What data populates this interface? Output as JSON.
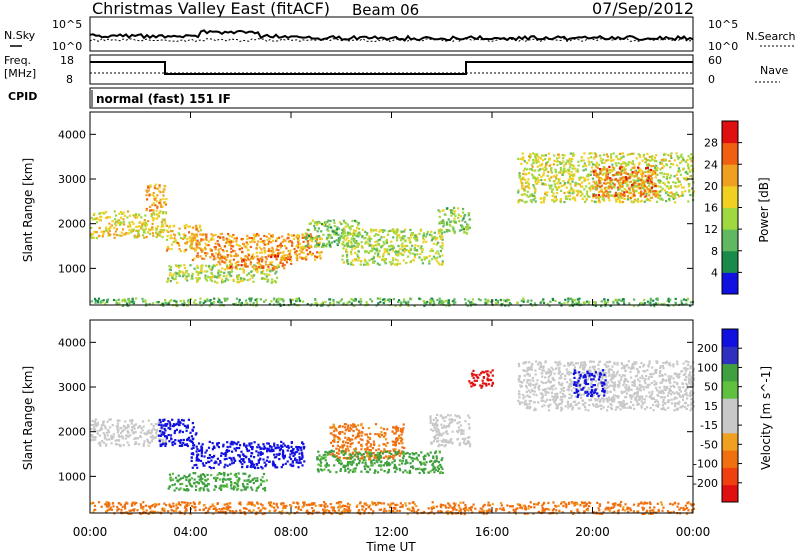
{
  "header": {
    "title": "Christmas Valley East (fitACF)",
    "beam": "Beam 06",
    "date": "07/Sep/2012"
  },
  "strip_labels": {
    "nsky": "N.Sky",
    "nsky_top": "10^5",
    "nsky_bottom": "10^0",
    "nsearch": "N.Search",
    "nsearch_top": "10^5",
    "nsearch_bottom": "10^0",
    "freq": "Freq.",
    "freq_unit": "[MHz]",
    "freq_top": "18",
    "freq_bottom": "8",
    "nave": "Nave",
    "nave_top": "60",
    "nave_bottom": "0",
    "cpid": "CPID",
    "cpid_value": "normal (fast) 151 IF"
  },
  "colors": {
    "power_scale": [
      "#1010e0",
      "#1a8a4a",
      "#60b860",
      "#a0d840",
      "#f0d020",
      "#f0a020",
      "#f06010",
      "#e01010"
    ],
    "velocity_scale": [
      "#e01010",
      "#f04010",
      "#f07010",
      "#f0a020",
      "#c8c8c8",
      "#c8c8c8",
      "#60c040",
      "#40a040",
      "#3030c0",
      "#1010e0"
    ]
  },
  "chart_data": [
    {
      "type": "heatmap",
      "name": "power",
      "ylabel": "Slant Range [km]",
      "ylim": [
        180,
        4500
      ],
      "xlim": [
        0,
        24
      ],
      "yticks": [
        "1000",
        "2000",
        "3000",
        "4000"
      ],
      "colorbar_label": "Power [dB]",
      "colorbar_ticks": [
        "4",
        "8",
        "12",
        "16",
        "20",
        "24",
        "28"
      ],
      "colorbar_range": [
        0,
        32
      ],
      "features": [
        {
          "x": [
            0,
            3.0
          ],
          "y": [
            1700,
            2300
          ],
          "value": 18
        },
        {
          "x": [
            2.2,
            3.0
          ],
          "y": [
            2300,
            2900
          ],
          "value": 22
        },
        {
          "x": [
            3.0,
            4.4
          ],
          "y": [
            1400,
            2000
          ],
          "value": 20
        },
        {
          "x": [
            4.0,
            9.2
          ],
          "y": [
            1200,
            1800
          ],
          "value": 22
        },
        {
          "x": [
            3.0,
            7.5
          ],
          "y": [
            700,
            1100
          ],
          "value": 14
        },
        {
          "x": [
            5.0,
            8.0
          ],
          "y": [
            1000,
            1300
          ],
          "value": 24
        },
        {
          "x": [
            8.5,
            10.8
          ],
          "y": [
            1500,
            2100
          ],
          "value": 12
        },
        {
          "x": [
            10.0,
            14.0
          ],
          "y": [
            1100,
            1900
          ],
          "value": 14
        },
        {
          "x": [
            13.8,
            15.1
          ],
          "y": [
            1800,
            2400
          ],
          "value": 12
        },
        {
          "x": [
            17.0,
            24.0
          ],
          "y": [
            2500,
            3600
          ],
          "value": 16
        },
        {
          "x": [
            20.0,
            22.5
          ],
          "y": [
            2600,
            3300
          ],
          "value": 24
        },
        {
          "x": [
            0,
            24
          ],
          "y": [
            180,
            350
          ],
          "value": 10
        }
      ]
    },
    {
      "type": "heatmap",
      "name": "velocity",
      "ylabel": "Slant Range [km]",
      "ylim": [
        180,
        4500
      ],
      "xlim": [
        0,
        24
      ],
      "yticks": [
        "1000",
        "2000",
        "3000",
        "4000"
      ],
      "colorbar_label": "Velocity [m s^-1]",
      "colorbar_ticks": [
        "200",
        "100",
        "50",
        "15",
        "-15",
        "-50",
        "-100",
        "-200"
      ],
      "features": [
        {
          "x": [
            0,
            3.0
          ],
          "y": [
            1700,
            2300
          ],
          "value": 0
        },
        {
          "x": [
            2.7,
            4.2
          ],
          "y": [
            1700,
            2300
          ],
          "value": 250
        },
        {
          "x": [
            4.0,
            8.5
          ],
          "y": [
            1200,
            1800
          ],
          "value": 250
        },
        {
          "x": [
            3.0,
            7.0
          ],
          "y": [
            700,
            1100
          ],
          "value": 60
        },
        {
          "x": [
            9.5,
            12.5
          ],
          "y": [
            1400,
            2200
          ],
          "value": -60
        },
        {
          "x": [
            9.0,
            14.0
          ],
          "y": [
            1100,
            1600
          ],
          "value": 60
        },
        {
          "x": [
            13.5,
            15.1
          ],
          "y": [
            1700,
            2400
          ],
          "value": 0
        },
        {
          "x": [
            17.0,
            24.0
          ],
          "y": [
            2500,
            3600
          ],
          "value": 0
        },
        {
          "x": [
            19.2,
            20.5
          ],
          "y": [
            2800,
            3400
          ],
          "value": 250
        },
        {
          "x": [
            15.0,
            16.0
          ],
          "y": [
            3000,
            3400
          ],
          "value": -250
        },
        {
          "x": [
            0,
            24
          ],
          "y": [
            180,
            450
          ],
          "value": -60
        }
      ]
    }
  ],
  "xaxis": {
    "label": "Time UT",
    "ticks": [
      "00:00",
      "04:00",
      "08:00",
      "12:00",
      "16:00",
      "20:00",
      "00:00"
    ]
  }
}
